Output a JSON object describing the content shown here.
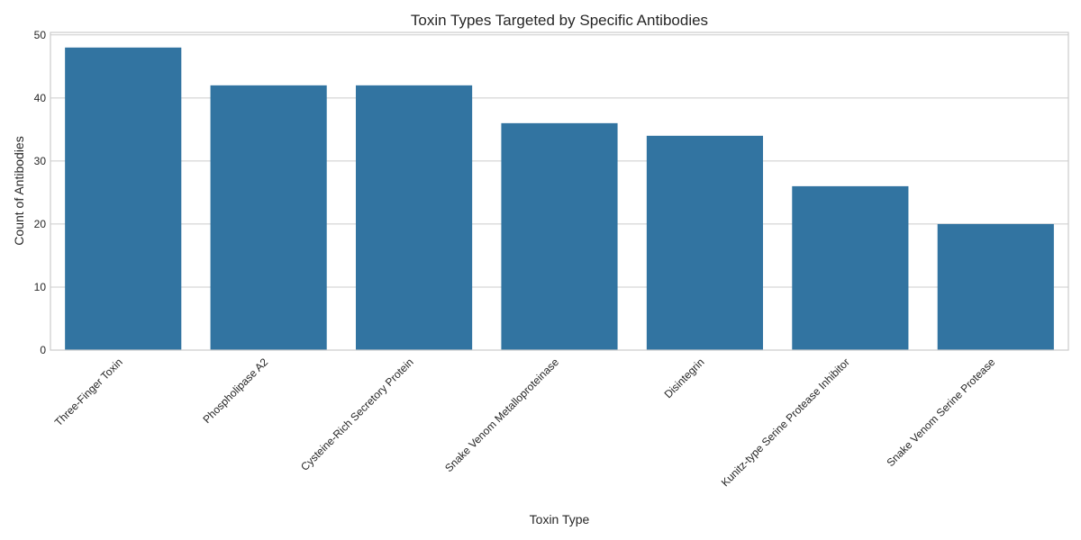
{
  "chart_data": {
    "type": "bar",
    "title": "Toxin Types Targeted by Specific Antibodies",
    "xlabel": "Toxin Type",
    "ylabel": "Count of Antibodies",
    "categories": [
      "Three-Finger Toxin",
      "Phospholipase A2",
      "Cysteine-Rich Secretory Protein",
      "Snake Venom Metalloproteinase",
      "Disintegrin",
      "Kunitz-type Serine Protease Inhibitor",
      "Snake Venom Serine Protease"
    ],
    "values": [
      48,
      42,
      42,
      36,
      34,
      26,
      20
    ],
    "ylim": [
      0,
      50.4
    ],
    "yticks": [
      0,
      10,
      20,
      30,
      40,
      50
    ],
    "grid": true,
    "bar_color": "#3274a1"
  }
}
